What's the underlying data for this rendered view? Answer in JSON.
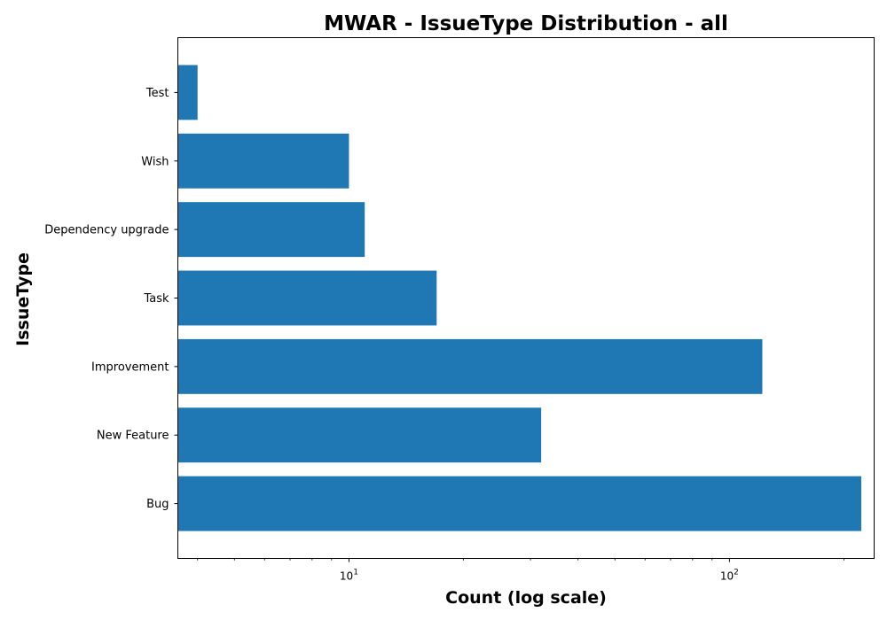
{
  "chart_data": {
    "type": "bar",
    "orientation": "horizontal",
    "title": "MWAR - IssueType Distribution - all",
    "xlabel": "Count (log scale)",
    "ylabel": "IssueType",
    "x_scale": "log",
    "xlim": [
      3.55,
      240
    ],
    "x_ticks": [
      {
        "value": 10,
        "base": "10",
        "exponent": "1"
      },
      {
        "value": 100,
        "base": "10",
        "exponent": "2"
      }
    ],
    "categories": [
      "Bug",
      "New Feature",
      "Improvement",
      "Task",
      "Dependency upgrade",
      "Wish",
      "Test"
    ],
    "values": [
      222,
      32,
      122,
      17,
      11,
      10,
      4
    ],
    "bar_color": "#1f77b4",
    "grid": false,
    "legend": "none"
  }
}
